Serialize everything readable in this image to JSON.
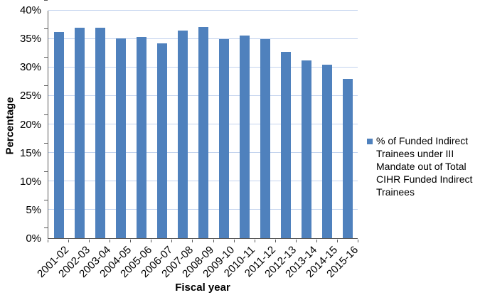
{
  "chart_data": {
    "type": "bar",
    "title": "",
    "xlabel": "Fiscal year",
    "ylabel": "Percentage",
    "categories": [
      "2001-02",
      "2002-03",
      "2003-04",
      "2004-05",
      "2005-06",
      "2006-07",
      "2007-08",
      "2008-09",
      "2009-10",
      "2010-11",
      "2011-12",
      "2012-13",
      "2013-14",
      "2014-15",
      "2015-16"
    ],
    "values": [
      36.3,
      37.0,
      37.0,
      35.1,
      35.4,
      34.2,
      36.5,
      37.1,
      35.0,
      35.6,
      35.0,
      32.8,
      31.3,
      30.5,
      28.0
    ],
    "ylim": [
      0,
      40
    ],
    "yticks": [
      "0%",
      "5%",
      "10%",
      "15%",
      "20%",
      "25%",
      "30%",
      "35%",
      "40%"
    ],
    "grid": "horizontal",
    "legend": {
      "position": "right",
      "label": "% of Funded Indirect Trainees under III Mandate out of Total CIHR Funded Indirect Trainees",
      "label_lines": [
        "% of Funded Indirect",
        "Trainees under III",
        "Mandate out of Total",
        "CIHR Funded Indirect",
        "Trainees"
      ]
    },
    "bar_color": "#4f81bd",
    "gridline_color": "#c3d3ee",
    "axis_color": "#595959"
  }
}
